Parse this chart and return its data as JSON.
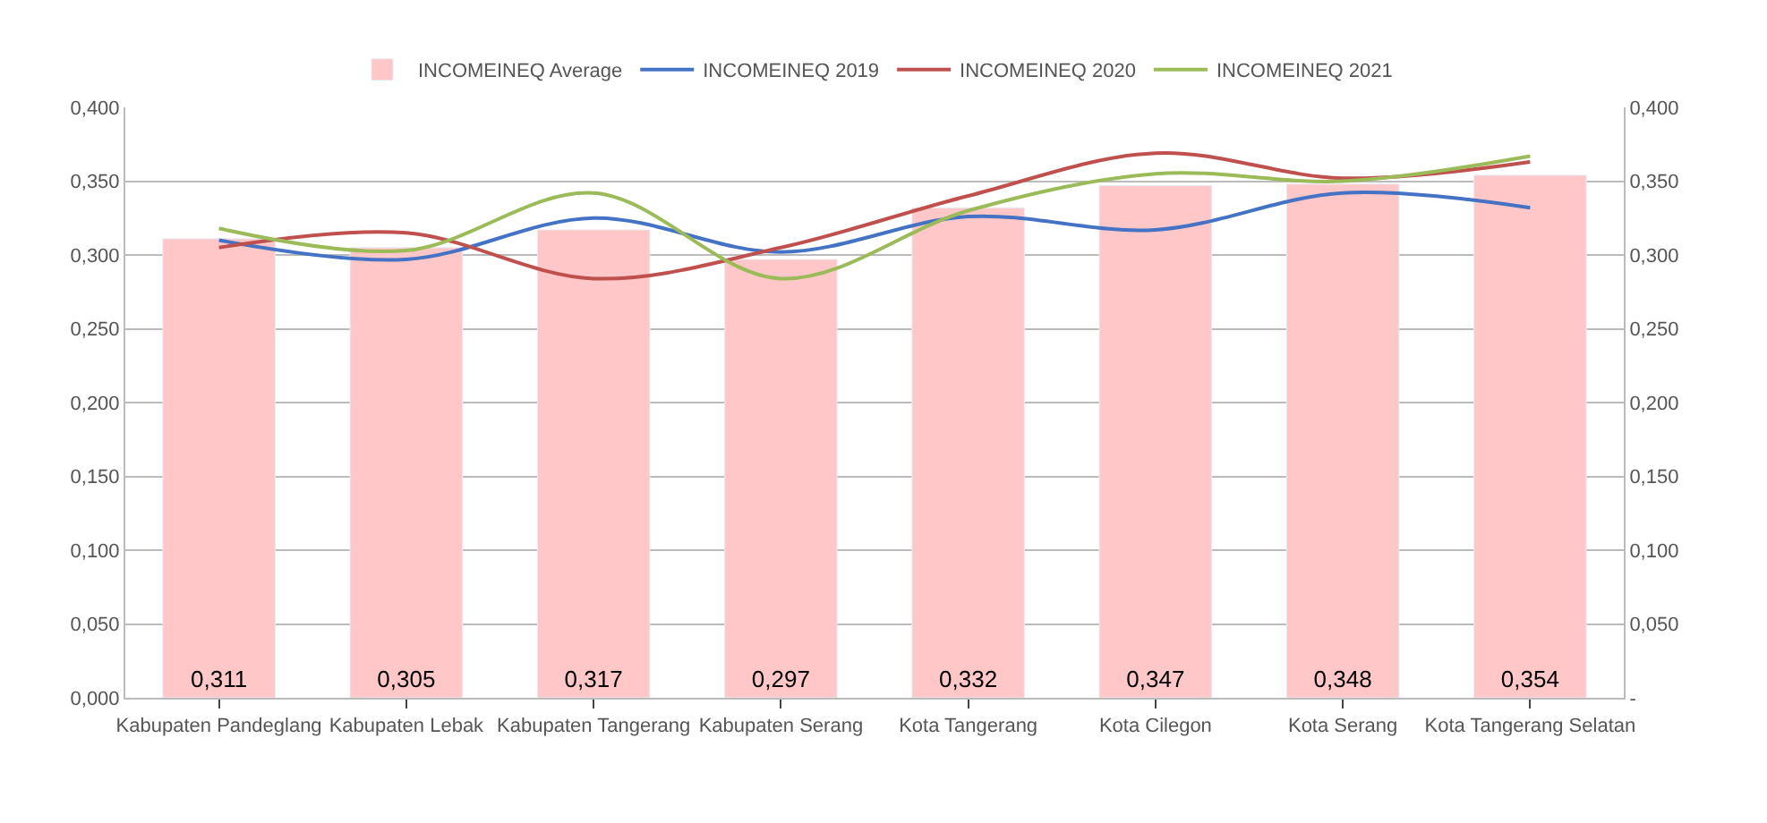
{
  "chart_data": {
    "type": "bar",
    "categories": [
      "Kabupaten Pandeglang",
      "Kabupaten Lebak",
      "Kabupaten Tangerang",
      "Kabupaten Serang",
      "Kota Tangerang",
      "Kota Cilegon",
      "Kota Serang",
      "Kota Tangerang Selatan"
    ],
    "series": [
      {
        "name": "INCOMEINEQ Average",
        "color": "#ffc7c7",
        "values": [
          0.311,
          0.305,
          0.317,
          0.297,
          0.332,
          0.347,
          0.348,
          0.354
        ],
        "value_labels": [
          "0,311",
          "0,305",
          "0,317",
          "0,297",
          "0,332",
          "0,347",
          "0,348",
          "0,354"
        ]
      },
      {
        "name": "INCOMEINEQ 2019",
        "type": "line",
        "color": "#4472c4",
        "values": [
          0.31,
          0.297,
          0.325,
          0.302,
          0.326,
          0.317,
          0.342,
          0.332
        ]
      },
      {
        "name": "INCOMEINEQ 2020",
        "type": "line",
        "color": "#c0504d",
        "values": [
          0.305,
          0.315,
          0.284,
          0.305,
          0.34,
          0.369,
          0.352,
          0.363
        ]
      },
      {
        "name": "INCOMEINEQ 2021",
        "type": "line",
        "color": "#9bbb59",
        "values": [
          0.318,
          0.303,
          0.342,
          0.284,
          0.33,
          0.355,
          0.35,
          0.367
        ]
      }
    ],
    "ylim": [
      0,
      0.4
    ],
    "yticks": [
      {
        "value": 0,
        "label": "0,000"
      },
      {
        "value": 0.05,
        "label": "0,050"
      },
      {
        "value": 0.1,
        "label": "0,100"
      },
      {
        "value": 0.15,
        "label": "0,150"
      },
      {
        "value": 0.2,
        "label": "0,200"
      },
      {
        "value": 0.25,
        "label": "0,250"
      },
      {
        "value": 0.3,
        "label": "0,300"
      },
      {
        "value": 0.35,
        "label": "0,350"
      },
      {
        "value": 0.4,
        "label": "0,400"
      }
    ],
    "y2lim": [
      0,
      0.4
    ],
    "y2ticks": [
      {
        "value": 0,
        "label": "-"
      },
      {
        "value": 0.05,
        "label": "0,050"
      },
      {
        "value": 0.1,
        "label": "0,100"
      },
      {
        "value": 0.15,
        "label": "0,150"
      },
      {
        "value": 0.2,
        "label": "0,200"
      },
      {
        "value": 0.25,
        "label": "0,250"
      },
      {
        "value": 0.3,
        "label": "0,300"
      },
      {
        "value": 0.35,
        "label": "0,350"
      },
      {
        "value": 0.4,
        "label": "0,400"
      }
    ],
    "grid": "y",
    "legend": "top"
  }
}
